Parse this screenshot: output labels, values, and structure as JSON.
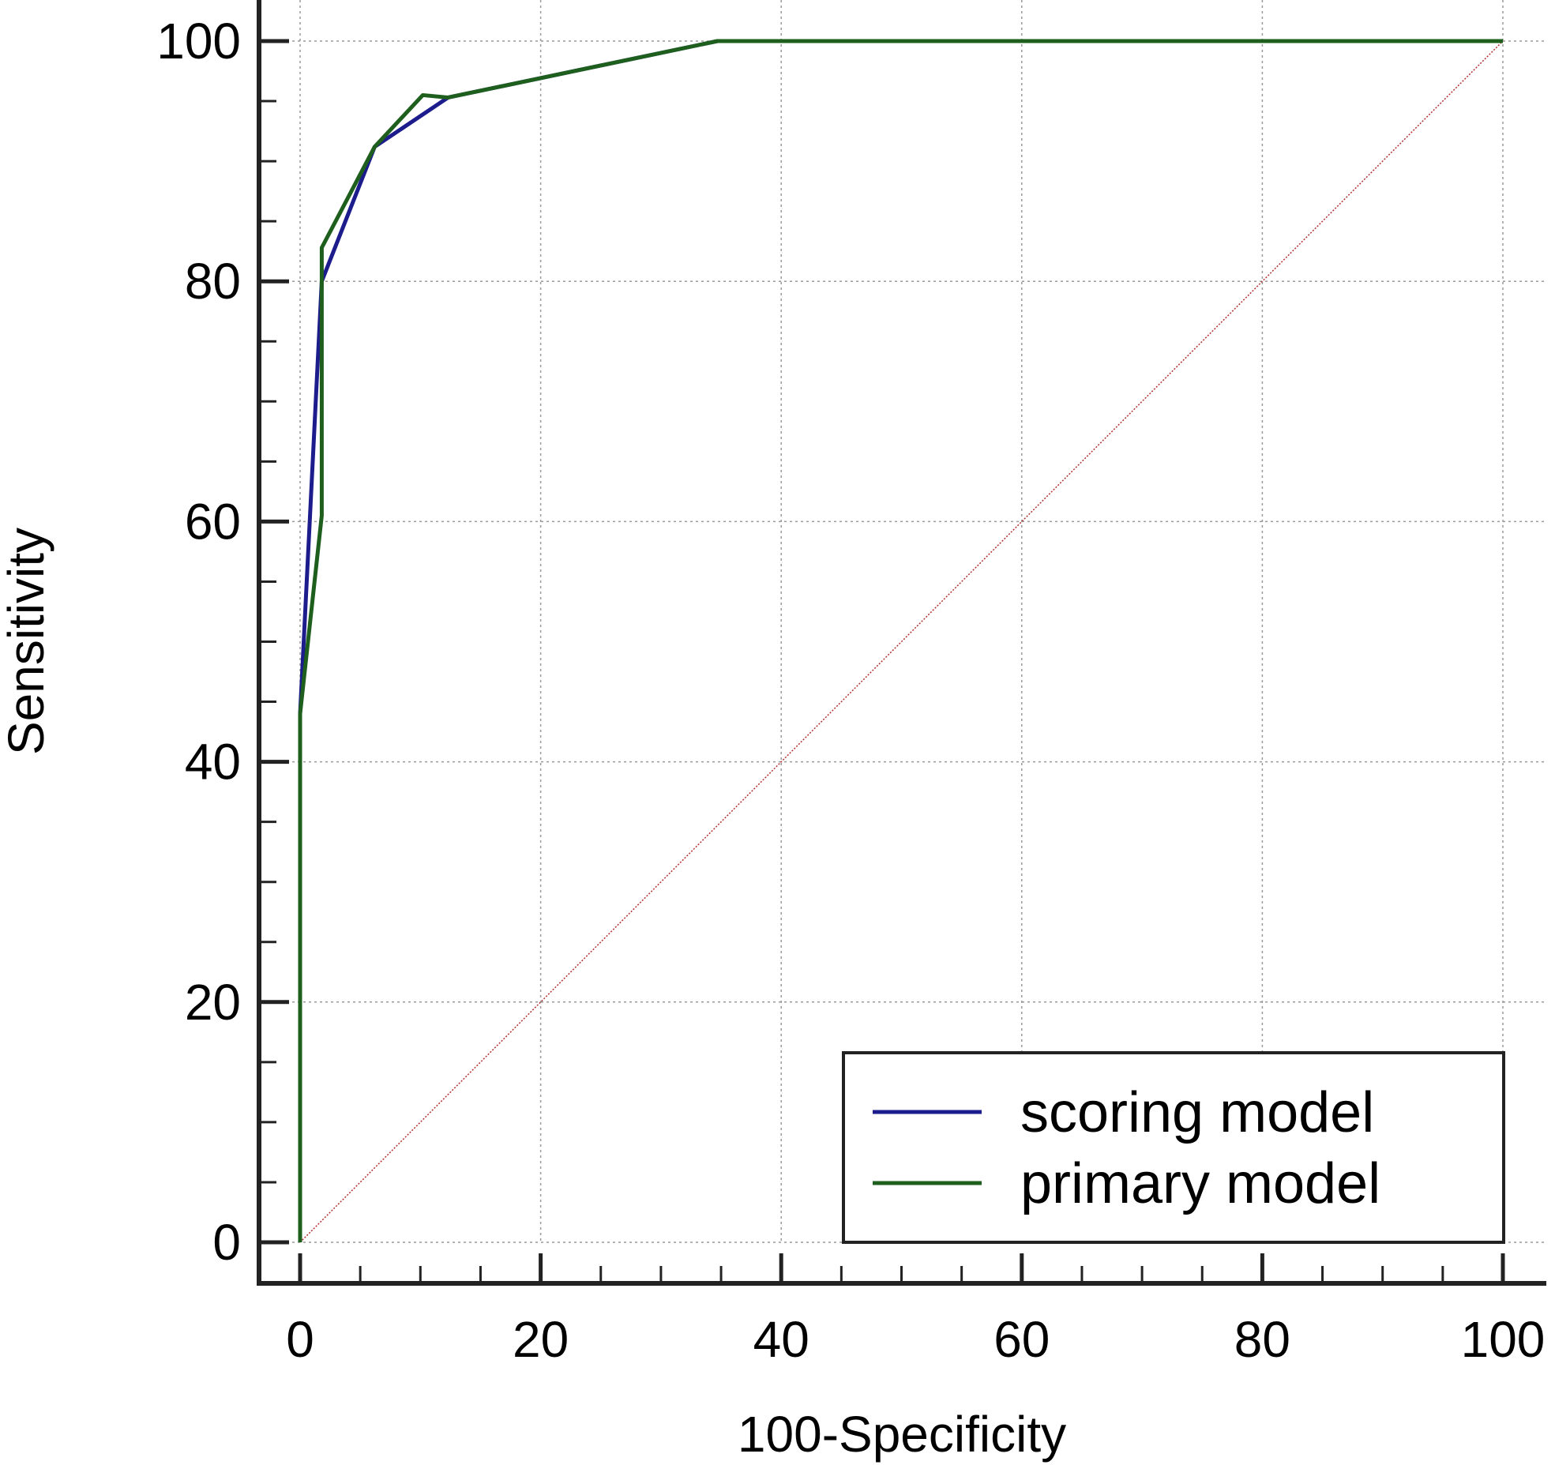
{
  "chart_data": {
    "type": "line",
    "xlabel": "100-Specificity",
    "ylabel": "Sensitivity",
    "xlim": [
      0,
      100
    ],
    "ylim": [
      0,
      100
    ],
    "x_ticks": [
      0,
      20,
      40,
      60,
      80,
      100
    ],
    "y_ticks": [
      0,
      20,
      40,
      60,
      80,
      100
    ],
    "x_tick_labels": [
      "0",
      "20",
      "40",
      "60",
      "80",
      "100"
    ],
    "y_tick_labels": [
      "0",
      "20",
      "40",
      "60",
      "80",
      "100"
    ],
    "grid": true,
    "legend_position": "bottom-right",
    "series": [
      {
        "name": "scoring model",
        "color": "#1c1c8c",
        "x": [
          0,
          0,
          1.8,
          6.2,
          12.3,
          34.7,
          100
        ],
        "y": [
          0,
          44.0,
          80.0,
          91.2,
          95.3,
          100,
          100
        ]
      },
      {
        "name": "primary model",
        "color": "#1e5f1e",
        "x": [
          0,
          0,
          1.8,
          1.8,
          6.2,
          10.2,
          12.3,
          34.7,
          100
        ],
        "y": [
          0,
          44.0,
          60.5,
          82.8,
          91.2,
          95.5,
          95.3,
          100,
          100
        ]
      }
    ],
    "reference_line": {
      "x": [
        0,
        100
      ],
      "y": [
        0,
        100
      ],
      "color": "#b23030"
    }
  }
}
